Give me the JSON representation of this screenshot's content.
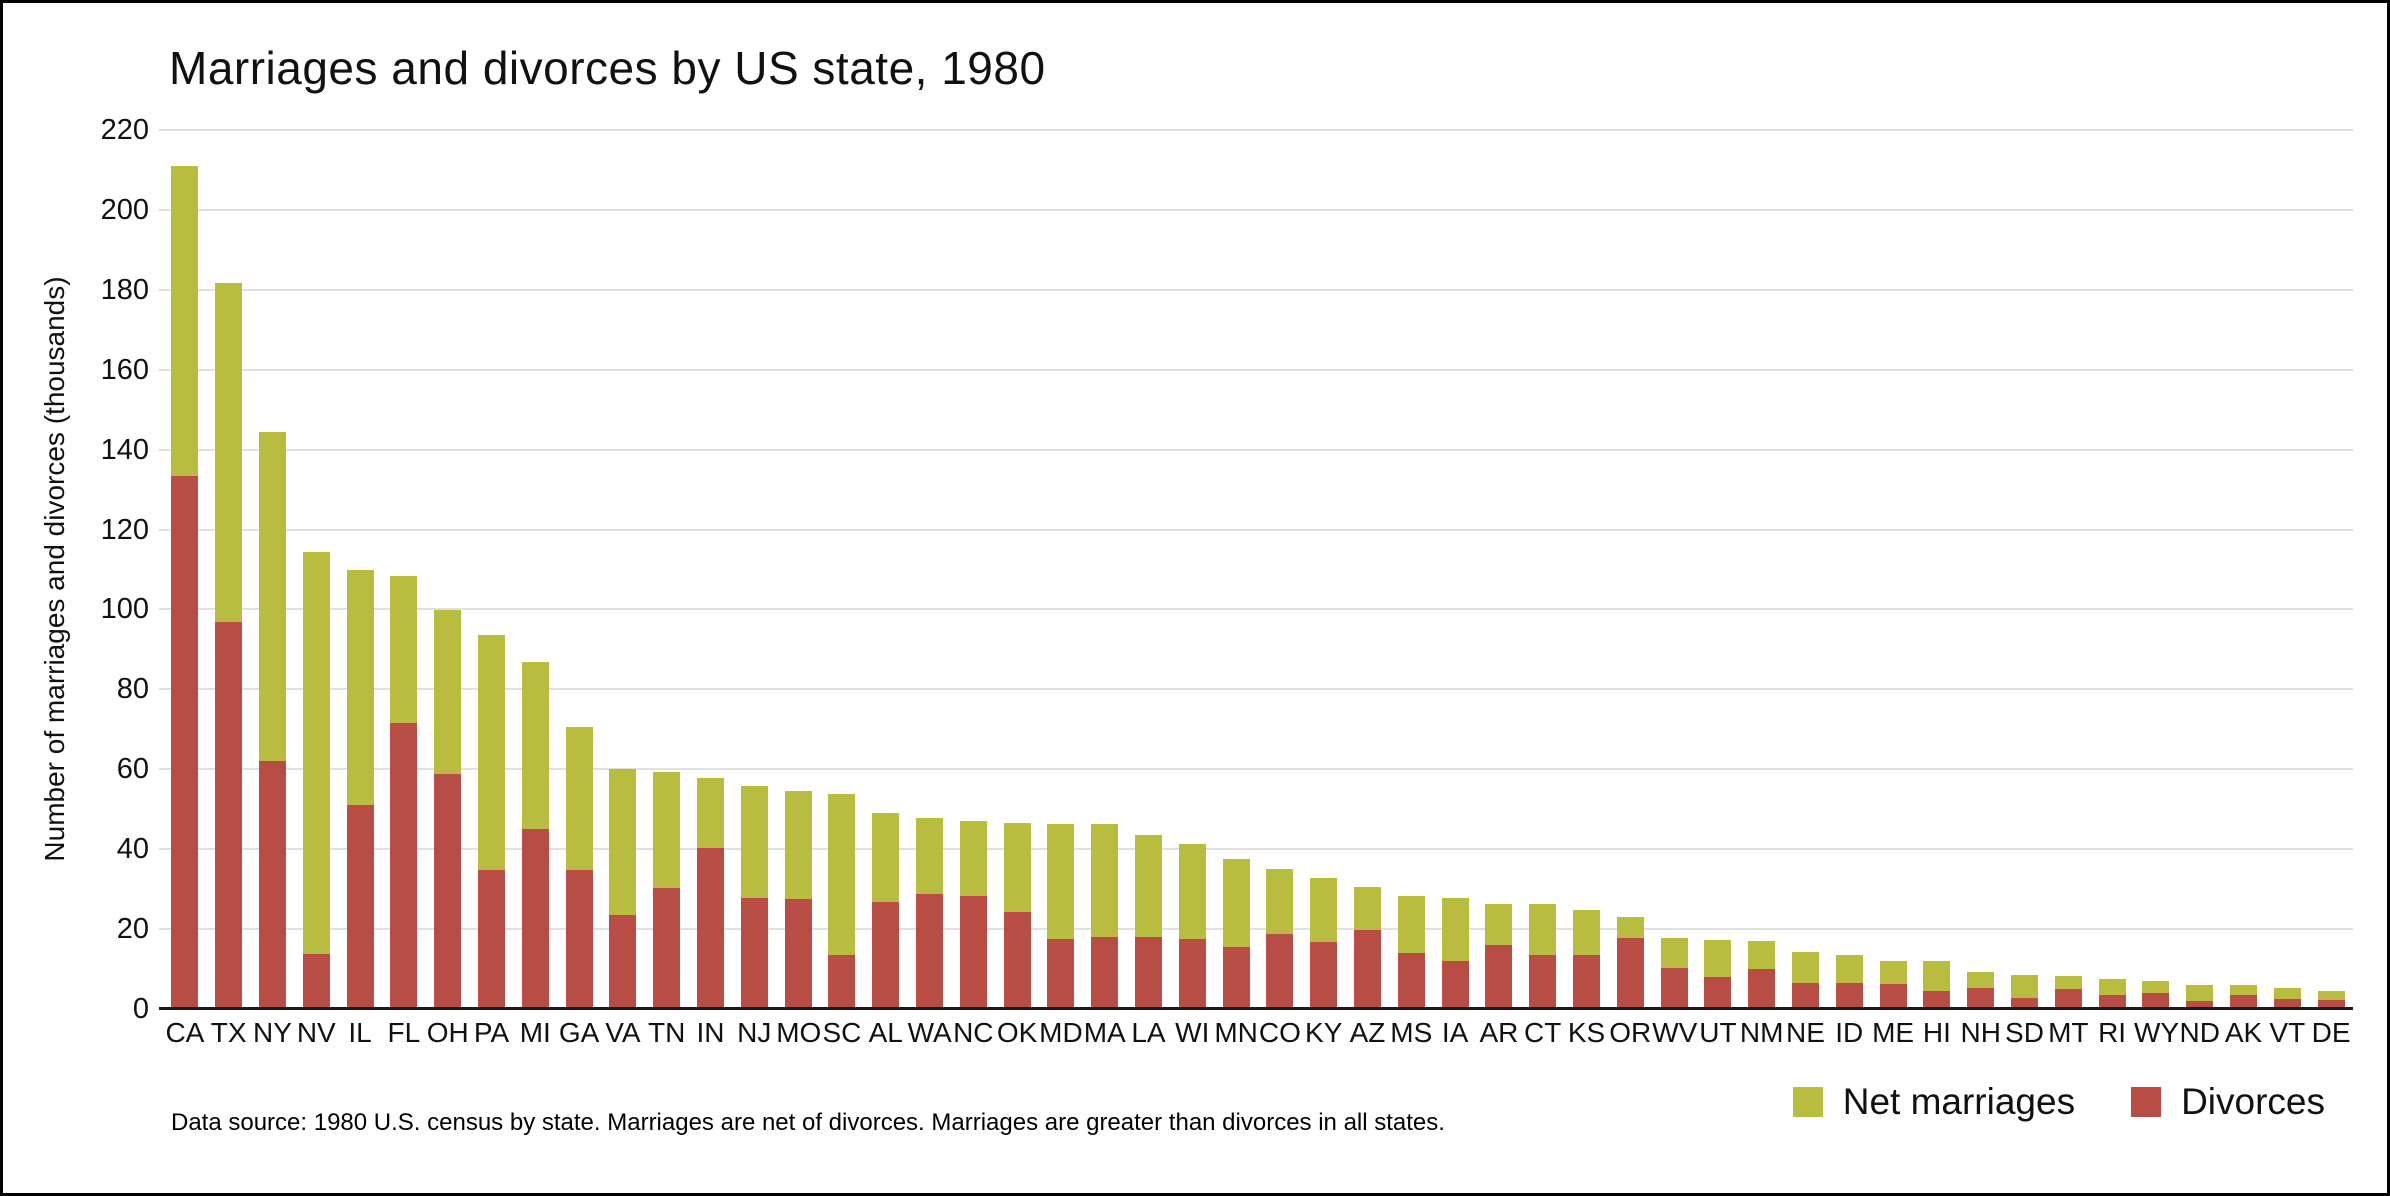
{
  "title": "Marriages and divorces by US state, 1980",
  "source_note": "Data source: 1980 U.S. census by state. Marriages are net of divorces. Marriages are greater than divorces in all states.",
  "colors": {
    "net_marriages": "#b9bd3f",
    "divorces": "#b84d46",
    "gridline": "#e0e0e0",
    "axis_line": "#1a1a1a",
    "background": "#ffffff"
  },
  "legend": {
    "position": "bottom-right",
    "items": [
      {
        "label": "Net marriages",
        "color": "#b9bd3f"
      },
      {
        "label": "Divorces",
        "color": "#b84d46"
      }
    ]
  },
  "chart_data": {
    "type": "bar",
    "stacked": true,
    "title": "Marriages and divorces by US state, 1980",
    "xlabel": "",
    "ylabel": "Number of marriages and divorces (thousands)",
    "ylim": [
      0,
      220
    ],
    "yticks": [
      0,
      20,
      40,
      60,
      80,
      100,
      120,
      140,
      160,
      180,
      200,
      220
    ],
    "grid": "horizontal",
    "legend_position": "bottom-right",
    "categories": [
      "CA",
      "TX",
      "NY",
      "NV",
      "IL",
      "FL",
      "OH",
      "PA",
      "MI",
      "GA",
      "VA",
      "TN",
      "IN",
      "NJ",
      "MO",
      "SC",
      "AL",
      "WA",
      "NC",
      "OK",
      "MD",
      "MA",
      "LA",
      "WI",
      "MN",
      "CO",
      "KY",
      "AZ",
      "MS",
      "IA",
      "AR",
      "CT",
      "KS",
      "OR",
      "WV",
      "UT",
      "NM",
      "NE",
      "ID",
      "ME",
      "HI",
      "NH",
      "SD",
      "MT",
      "RI",
      "WY",
      "ND",
      "AK",
      "VT",
      "DE"
    ],
    "series": [
      {
        "name": "Divorces",
        "color": "#b84d46",
        "stack_order": "bottom",
        "values": [
          133.5,
          96.8,
          62.0,
          13.8,
          51.0,
          71.6,
          58.8,
          34.9,
          45.0,
          34.7,
          23.6,
          30.2,
          40.4,
          27.8,
          27.6,
          13.6,
          26.7,
          28.8,
          28.2,
          24.2,
          17.5,
          17.9,
          18.1,
          17.5,
          15.4,
          18.9,
          16.7,
          19.9,
          13.9,
          11.9,
          15.9,
          13.5,
          13.4,
          17.7,
          10.3,
          8.0,
          10.0,
          6.4,
          6.6,
          6.2,
          4.4,
          5.3,
          2.8,
          5.1,
          3.6,
          4.0,
          2.1,
          3.5,
          2.6,
          2.3
        ]
      },
      {
        "name": "Net marriages",
        "color": "#b9bd3f",
        "stack_order": "top",
        "values": [
          77.4,
          85.0,
          82.5,
          100.5,
          58.8,
          36.7,
          41.0,
          58.8,
          41.9,
          35.9,
          36.6,
          29.0,
          17.5,
          28.0,
          27.0,
          40.3,
          22.3,
          19.1,
          18.9,
          22.3,
          28.8,
          28.4,
          25.4,
          23.9,
          22.2,
          16.1,
          16.2,
          10.7,
          14.5,
          16.0,
          10.4,
          12.7,
          11.4,
          5.4,
          7.6,
          9.3,
          6.9,
          7.8,
          6.8,
          5.8,
          7.5,
          4.0,
          5.7,
          3.2,
          3.9,
          2.9,
          4.0,
          2.4,
          2.6,
          2.1
        ]
      }
    ],
    "bar_totals_marriages": [
      210.9,
      181.8,
      144.5,
      114.3,
      109.8,
      108.3,
      99.8,
      93.7,
      86.9,
      70.6,
      60.2,
      59.2,
      57.9,
      55.8,
      54.6,
      53.9,
      49.0,
      47.9,
      47.1,
      46.5,
      46.3,
      46.3,
      43.5,
      41.4,
      37.6,
      35.0,
      32.9,
      30.6,
      28.4,
      27.9,
      26.3,
      26.2,
      24.8,
      23.1,
      17.9,
      17.3,
      16.9,
      14.2,
      13.4,
      12.0,
      11.9,
      9.3,
      8.5,
      8.3,
      7.5,
      6.9,
      6.1,
      5.9,
      5.2,
      4.4
    ]
  }
}
